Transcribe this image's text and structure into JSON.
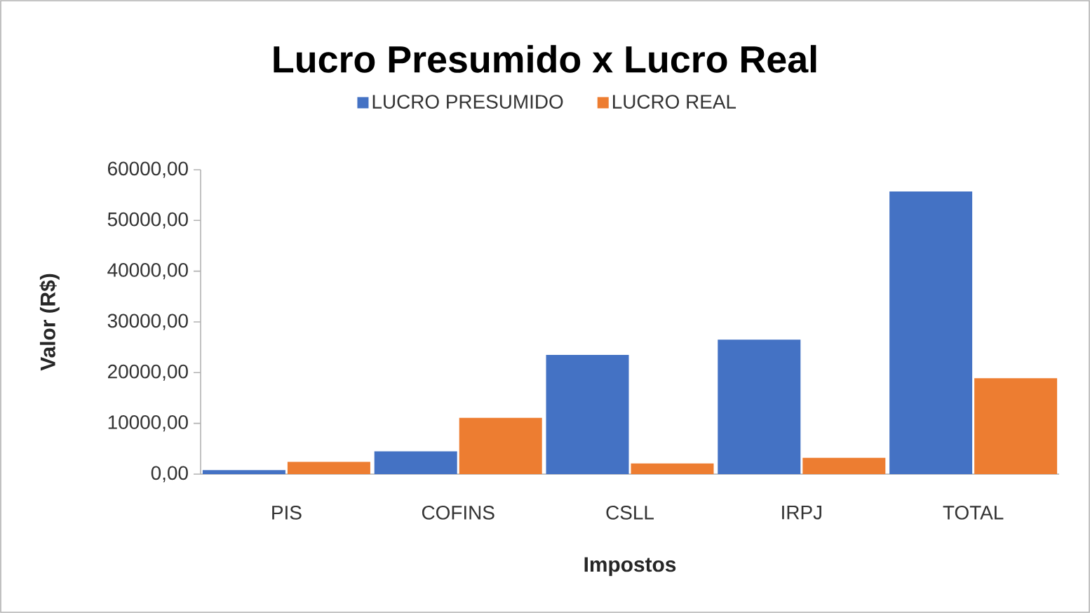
{
  "chart_data": {
    "type": "bar",
    "title": "Lucro Presumido x Lucro Real",
    "xlabel": "Impostos",
    "ylabel": "Valor (R$)",
    "categories": [
      "PIS",
      "COFINS",
      "CSLL",
      "IRPJ",
      "TOTAL"
    ],
    "series": [
      {
        "name": "LUCRO PRESUMIDO",
        "color": "#4472c4",
        "values": [
          800,
          4500,
          23500,
          26500,
          55700
        ]
      },
      {
        "name": "LUCRO REAL",
        "color": "#ed7d31",
        "values": [
          2400,
          11100,
          2100,
          3200,
          18900
        ]
      }
    ],
    "ylim": [
      0,
      60000
    ],
    "yticks": [
      {
        "value": 0,
        "label": "0,00"
      },
      {
        "value": 10000,
        "label": "10000,00"
      },
      {
        "value": 20000,
        "label": "20000,00"
      },
      {
        "value": 30000,
        "label": "30000,00"
      },
      {
        "value": 40000,
        "label": "40000,00"
      },
      {
        "value": 50000,
        "label": "50000,00"
      },
      {
        "value": 60000,
        "label": "60000,00"
      }
    ],
    "legend": "top"
  }
}
